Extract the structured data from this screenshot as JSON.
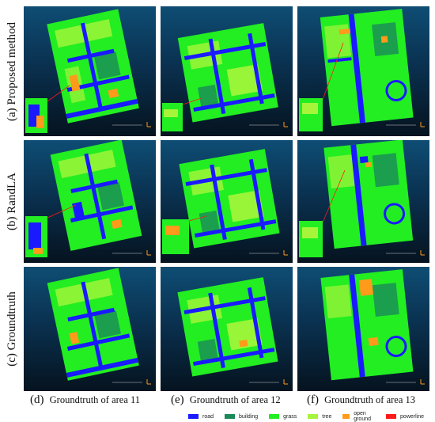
{
  "row_labels": [
    "(a) Proposed method",
    "(b) RandLA",
    "(c) Groundtruth"
  ],
  "captions": [
    {
      "letter": "(d)",
      "text": "Groundtruth of area 11"
    },
    {
      "letter": "(e)",
      "text": "Groundtruth of area 12"
    },
    {
      "letter": "(f)",
      "text": "Groundtruth of area 13"
    }
  ],
  "legend": [
    {
      "label": "road",
      "color": "#1a1aff"
    },
    {
      "label": "building",
      "color": "#1a8a5a"
    },
    {
      "label": "grass",
      "color": "#22ee22"
    },
    {
      "label": "tree",
      "color": "#a6f53a"
    },
    {
      "label": "open ground",
      "color": "#ff9a1a"
    },
    {
      "label": "powerline",
      "color": "#ff1a1a"
    }
  ],
  "colors": {
    "background_top": "#0e4d74",
    "background_bottom": "#05131f",
    "road": "#1a1aff",
    "building": "#1a8a5a",
    "grass": "#22ee22",
    "tree": "#a6f53a",
    "open_ground": "#ff9a1a",
    "powerline": "#ff1a1a"
  }
}
